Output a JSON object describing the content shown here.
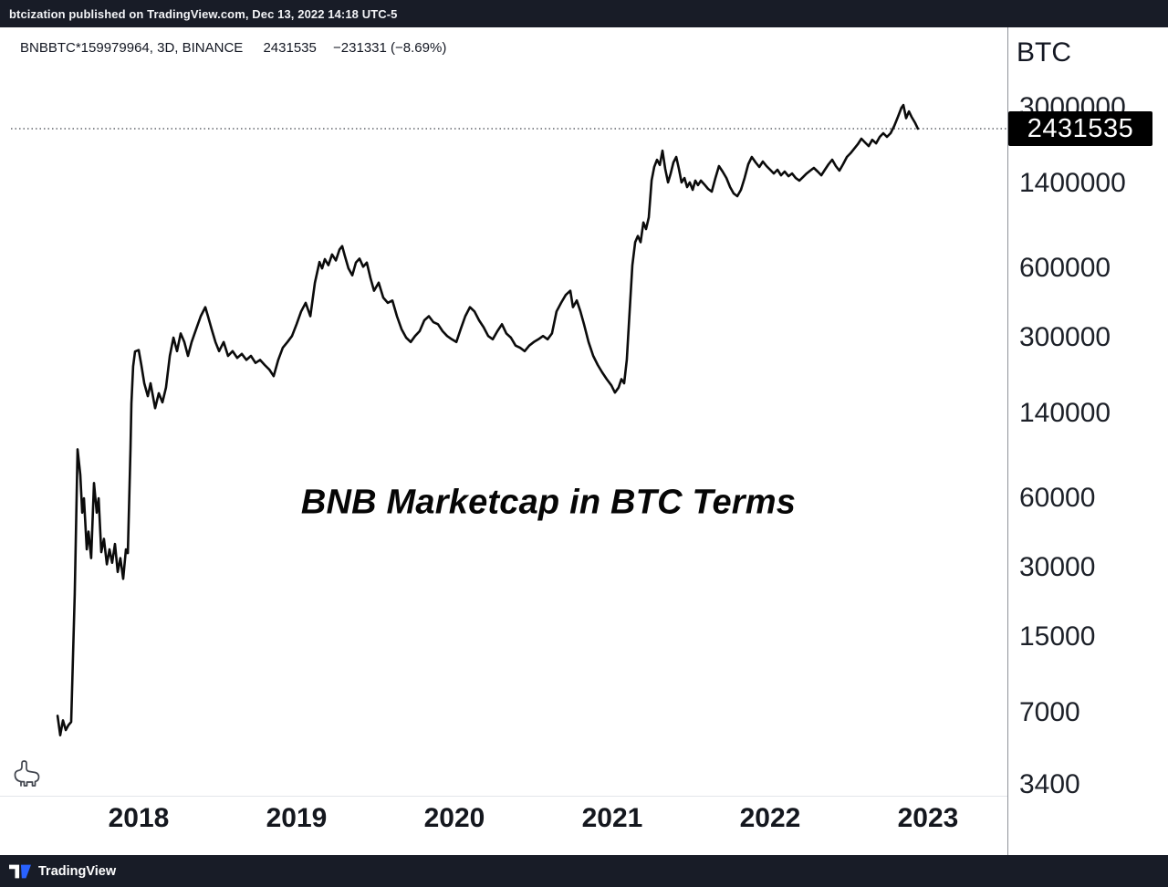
{
  "header": {
    "publish_text": "btcization published on TradingView.com, Dec 13, 2022 14:18 UTC-5"
  },
  "legend": {
    "symbol": "BNBBTC*159979964, 3D, BINANCE",
    "price": "2431535",
    "change": "−231331 (−8.69%)"
  },
  "watermark": "BNB Marketcap in BTC Terms",
  "price_axis": {
    "title": "BTC",
    "price_label": "2431535"
  },
  "footer": {
    "brand": "TradingView"
  },
  "colors": {
    "line": "#0b0b0b",
    "label_bg": "#000000",
    "bar_bg": "#181c27",
    "accent_blue": "#2962ff"
  },
  "chart_data": {
    "type": "line",
    "title": "BNB Marketcap in BTC Terms",
    "symbol": "BNBBTC*159979964",
    "interval": "3D",
    "exchange": "BINANCE",
    "current_price": 2431535,
    "change": -231331,
    "change_pct": -8.69,
    "unit": "BTC",
    "y_axis": {
      "scale": "log",
      "ticks": [
        {
          "label": "3000000",
          "value": 3000000
        },
        {
          "label": "1400000",
          "value": 1400000
        },
        {
          "label": "600000",
          "value": 600000
        },
        {
          "label": "300000",
          "value": 300000
        },
        {
          "label": "140000",
          "value": 140000
        },
        {
          "label": "60000",
          "value": 60000
        },
        {
          "label": "30000",
          "value": 30000
        },
        {
          "label": "15000",
          "value": 15000
        },
        {
          "label": "7000",
          "value": 7000
        },
        {
          "label": "3400",
          "value": 3400
        }
      ]
    },
    "x_axis": {
      "ticks": [
        {
          "label": "2018",
          "year": 2018
        },
        {
          "label": "2019",
          "year": 2019
        },
        {
          "label": "2020",
          "year": 2020
        },
        {
          "label": "2021",
          "year": 2021
        },
        {
          "label": "2022",
          "year": 2022
        },
        {
          "label": "2023",
          "year": 2023
        }
      ],
      "range": [
        2017.45,
        2023.3
      ]
    },
    "grid": false,
    "series": [
      {
        "name": "BNBBTC*159979964",
        "points": [
          [
            2017.486,
            6800
          ],
          [
            2017.503,
            5600
          ],
          [
            2017.52,
            6500
          ],
          [
            2017.538,
            5900
          ],
          [
            2017.555,
            6200
          ],
          [
            2017.572,
            6400
          ],
          [
            2017.595,
            23000
          ],
          [
            2017.613,
            98000
          ],
          [
            2017.63,
            76000
          ],
          [
            2017.642,
            52000
          ],
          [
            2017.653,
            60000
          ],
          [
            2017.671,
            36000
          ],
          [
            2017.682,
            43000
          ],
          [
            2017.699,
            33000
          ],
          [
            2017.717,
            70000
          ],
          [
            2017.734,
            52000
          ],
          [
            2017.746,
            60000
          ],
          [
            2017.763,
            35000
          ],
          [
            2017.78,
            40000
          ],
          [
            2017.798,
            31000
          ],
          [
            2017.815,
            36000
          ],
          [
            2017.832,
            31500
          ],
          [
            2017.85,
            38000
          ],
          [
            2017.867,
            28700
          ],
          [
            2017.884,
            33000
          ],
          [
            2017.902,
            26800
          ],
          [
            2017.919,
            36000
          ],
          [
            2017.931,
            34700
          ],
          [
            2017.948,
            98000
          ],
          [
            2017.954,
            155000
          ],
          [
            2017.965,
            225000
          ],
          [
            2017.977,
            261000
          ],
          [
            2018.0,
            265000
          ],
          [
            2018.017,
            228000
          ],
          [
            2018.035,
            190000
          ],
          [
            2018.058,
            167000
          ],
          [
            2018.075,
            190000
          ],
          [
            2018.104,
            148000
          ],
          [
            2018.127,
            172000
          ],
          [
            2018.15,
            157000
          ],
          [
            2018.173,
            182000
          ],
          [
            2018.197,
            250000
          ],
          [
            2018.22,
            300000
          ],
          [
            2018.243,
            262000
          ],
          [
            2018.266,
            313000
          ],
          [
            2018.289,
            287000
          ],
          [
            2018.312,
            250000
          ],
          [
            2018.335,
            287000
          ],
          [
            2018.364,
            327000
          ],
          [
            2018.393,
            372000
          ],
          [
            2018.422,
            407000
          ],
          [
            2018.439,
            372000
          ],
          [
            2018.462,
            327000
          ],
          [
            2018.486,
            287000
          ],
          [
            2018.509,
            262000
          ],
          [
            2018.538,
            287000
          ],
          [
            2018.566,
            250000
          ],
          [
            2018.595,
            262000
          ],
          [
            2018.624,
            245000
          ],
          [
            2018.653,
            255000
          ],
          [
            2018.682,
            240000
          ],
          [
            2018.711,
            250000
          ],
          [
            2018.74,
            233000
          ],
          [
            2018.769,
            240000
          ],
          [
            2018.798,
            228000
          ],
          [
            2018.827,
            218000
          ],
          [
            2018.855,
            204000
          ],
          [
            2018.884,
            240000
          ],
          [
            2018.913,
            271000
          ],
          [
            2018.942,
            287000
          ],
          [
            2018.971,
            305000
          ],
          [
            2019.0,
            343000
          ],
          [
            2019.029,
            390000
          ],
          [
            2019.058,
            425000
          ],
          [
            2019.087,
            372000
          ],
          [
            2019.116,
            520000
          ],
          [
            2019.145,
            640000
          ],
          [
            2019.162,
            600000
          ],
          [
            2019.179,
            658000
          ],
          [
            2019.202,
            620000
          ],
          [
            2019.225,
            690000
          ],
          [
            2019.249,
            650000
          ],
          [
            2019.272,
            725000
          ],
          [
            2019.289,
            750000
          ],
          [
            2019.306,
            680000
          ],
          [
            2019.329,
            600000
          ],
          [
            2019.353,
            560000
          ],
          [
            2019.376,
            636000
          ],
          [
            2019.399,
            662000
          ],
          [
            2019.422,
            610000
          ],
          [
            2019.445,
            636000
          ],
          [
            2019.468,
            545000
          ],
          [
            2019.491,
            480000
          ],
          [
            2019.52,
            520000
          ],
          [
            2019.549,
            448000
          ],
          [
            2019.578,
            425000
          ],
          [
            2019.607,
            435000
          ],
          [
            2019.636,
            372000
          ],
          [
            2019.665,
            327000
          ],
          [
            2019.694,
            300000
          ],
          [
            2019.723,
            287000
          ],
          [
            2019.751,
            305000
          ],
          [
            2019.78,
            320000
          ],
          [
            2019.809,
            357000
          ],
          [
            2019.838,
            372000
          ],
          [
            2019.867,
            350000
          ],
          [
            2019.896,
            343000
          ],
          [
            2019.925,
            320000
          ],
          [
            2019.954,
            305000
          ],
          [
            2019.983,
            295000
          ],
          [
            2020.012,
            287000
          ],
          [
            2020.04,
            327000
          ],
          [
            2020.069,
            372000
          ],
          [
            2020.098,
            407000
          ],
          [
            2020.127,
            390000
          ],
          [
            2020.156,
            357000
          ],
          [
            2020.185,
            333000
          ],
          [
            2020.214,
            305000
          ],
          [
            2020.243,
            295000
          ],
          [
            2020.272,
            320000
          ],
          [
            2020.301,
            343000
          ],
          [
            2020.329,
            313000
          ],
          [
            2020.358,
            300000
          ],
          [
            2020.387,
            277000
          ],
          [
            2020.416,
            271000
          ],
          [
            2020.445,
            262000
          ],
          [
            2020.474,
            277000
          ],
          [
            2020.503,
            287000
          ],
          [
            2020.532,
            295000
          ],
          [
            2020.561,
            305000
          ],
          [
            2020.59,
            295000
          ],
          [
            2020.618,
            313000
          ],
          [
            2020.647,
            390000
          ],
          [
            2020.676,
            425000
          ],
          [
            2020.705,
            460000
          ],
          [
            2020.734,
            480000
          ],
          [
            2020.751,
            407000
          ],
          [
            2020.775,
            435000
          ],
          [
            2020.798,
            390000
          ],
          [
            2020.821,
            343000
          ],
          [
            2020.85,
            287000
          ],
          [
            2020.879,
            250000
          ],
          [
            2020.908,
            228000
          ],
          [
            2020.936,
            212000
          ],
          [
            2020.965,
            198000
          ],
          [
            2020.994,
            186000
          ],
          [
            2021.017,
            173000
          ],
          [
            2021.04,
            182000
          ],
          [
            2021.058,
            198000
          ],
          [
            2021.075,
            190000
          ],
          [
            2021.092,
            240000
          ],
          [
            2021.11,
            390000
          ],
          [
            2021.127,
            620000
          ],
          [
            2021.145,
            780000
          ],
          [
            2021.162,
            830000
          ],
          [
            2021.179,
            780000
          ],
          [
            2021.197,
            950000
          ],
          [
            2021.214,
            890000
          ],
          [
            2021.231,
            1000000
          ],
          [
            2021.249,
            1450000
          ],
          [
            2021.266,
            1660000
          ],
          [
            2021.283,
            1780000
          ],
          [
            2021.301,
            1690000
          ],
          [
            2021.318,
            1950000
          ],
          [
            2021.335,
            1626000
          ],
          [
            2021.353,
            1420000
          ],
          [
            2021.37,
            1553000
          ],
          [
            2021.387,
            1734000
          ],
          [
            2021.405,
            1832000
          ],
          [
            2021.422,
            1626000
          ],
          [
            2021.439,
            1420000
          ],
          [
            2021.457,
            1483000
          ],
          [
            2021.474,
            1355000
          ],
          [
            2021.491,
            1420000
          ],
          [
            2021.509,
            1318000
          ],
          [
            2021.526,
            1445000
          ],
          [
            2021.543,
            1381000
          ],
          [
            2021.561,
            1445000
          ],
          [
            2021.584,
            1390000
          ],
          [
            2021.607,
            1330000
          ],
          [
            2021.63,
            1294000
          ],
          [
            2021.653,
            1483000
          ],
          [
            2021.676,
            1671000
          ],
          [
            2021.699,
            1582000
          ],
          [
            2021.723,
            1483000
          ],
          [
            2021.746,
            1355000
          ],
          [
            2021.769,
            1271000
          ],
          [
            2021.792,
            1236000
          ],
          [
            2021.815,
            1318000
          ],
          [
            2021.838,
            1483000
          ],
          [
            2021.861,
            1702000
          ],
          [
            2021.884,
            1832000
          ],
          [
            2021.908,
            1734000
          ],
          [
            2021.931,
            1656000
          ],
          [
            2021.954,
            1750000
          ],
          [
            2021.977,
            1671000
          ],
          [
            2022.0,
            1611000
          ],
          [
            2022.023,
            1553000
          ],
          [
            2022.046,
            1611000
          ],
          [
            2022.069,
            1524000
          ],
          [
            2022.092,
            1582000
          ],
          [
            2022.116,
            1510000
          ],
          [
            2022.139,
            1553000
          ],
          [
            2022.162,
            1483000
          ],
          [
            2022.185,
            1445000
          ],
          [
            2022.208,
            1497000
          ],
          [
            2022.231,
            1553000
          ],
          [
            2022.254,
            1597000
          ],
          [
            2022.277,
            1641000
          ],
          [
            2022.301,
            1582000
          ],
          [
            2022.324,
            1524000
          ],
          [
            2022.347,
            1611000
          ],
          [
            2022.37,
            1702000
          ],
          [
            2022.393,
            1782000
          ],
          [
            2022.416,
            1671000
          ],
          [
            2022.439,
            1597000
          ],
          [
            2022.462,
            1702000
          ],
          [
            2022.486,
            1832000
          ],
          [
            2022.509,
            1902000
          ],
          [
            2022.532,
            1986000
          ],
          [
            2022.555,
            2080000
          ],
          [
            2022.578,
            2198000
          ],
          [
            2022.601,
            2118000
          ],
          [
            2022.624,
            2042000
          ],
          [
            2022.647,
            2175000
          ],
          [
            2022.671,
            2099000
          ],
          [
            2022.694,
            2239000
          ],
          [
            2022.717,
            2323000
          ],
          [
            2022.74,
            2239000
          ],
          [
            2022.763,
            2323000
          ],
          [
            2022.786,
            2500000
          ],
          [
            2022.809,
            2735000
          ],
          [
            2022.832,
            3000000
          ],
          [
            2022.844,
            3080000
          ],
          [
            2022.861,
            2700000
          ],
          [
            2022.879,
            2890000
          ],
          [
            2022.896,
            2735000
          ],
          [
            2022.919,
            2570000
          ],
          [
            2022.936,
            2431535
          ]
        ]
      }
    ]
  }
}
